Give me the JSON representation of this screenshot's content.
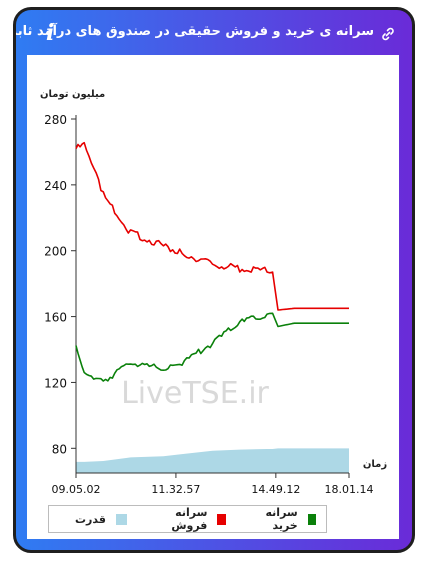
{
  "header": {
    "title": "سرانه ی خرید و فروش حقیقی در صندوق های درآمد ثابت",
    "info_label": "i",
    "link_icon": "link-icon"
  },
  "watermark": "LiveTSE.ir",
  "colors": {
    "sell": "#e60000",
    "buy": "#0a800a",
    "power": "#add8e6",
    "frame_start": "#2f7cf2",
    "frame_end": "#6a2bd8"
  },
  "chart_data": {
    "type": "line",
    "ylabel": "میلیون تومان",
    "xlabel": "زمان",
    "ylim": [
      65,
      280
    ],
    "yticks": [
      80,
      120,
      160,
      200,
      240,
      280
    ],
    "xticks": [
      "09.05.02",
      "11.32.57",
      "14.49.12",
      "18.01.14"
    ],
    "x_positions": [
      0,
      0.03,
      0.1,
      0.2,
      0.32,
      0.38,
      0.5,
      0.6,
      0.7,
      0.72,
      0.74,
      0.8,
      0.9,
      1.0
    ],
    "series": [
      {
        "name": "سرانه فروش",
        "color": "#e60000",
        "values": [
          262,
          264,
          234,
          211,
          203,
          199,
          192,
          189,
          188,
          187,
          164,
          165,
          165,
          165
        ]
      },
      {
        "name": "سرانه خرید",
        "color": "#0a800a",
        "values": [
          142,
          127,
          121,
          132,
          128,
          131,
          144,
          156,
          161,
          162,
          154,
          156,
          156,
          156
        ]
      },
      {
        "name": "قدرت",
        "color": "#add8e6",
        "type": "area",
        "values": [
          0.37,
          0.37,
          0.4,
          0.52,
          0.56,
          0.62,
          0.74,
          0.78,
          0.8,
          0.8,
          0.82,
          0.82,
          0.82,
          0.82
        ]
      }
    ]
  },
  "legend": [
    {
      "label": "سرانه خرید",
      "color": "#0a800a"
    },
    {
      "label": "سرانه فروش",
      "color": "#e60000"
    },
    {
      "label": "قدرت",
      "color": "#add8e6"
    }
  ]
}
